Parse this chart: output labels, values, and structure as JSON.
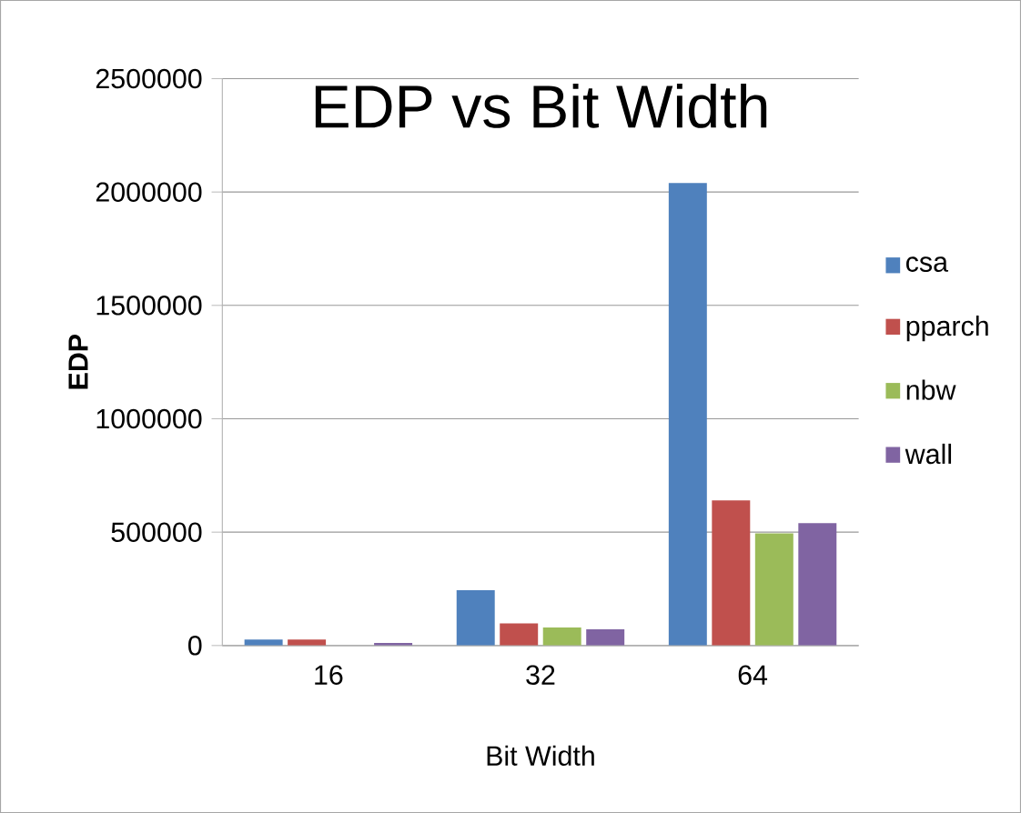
{
  "chart_data": {
    "type": "bar",
    "title": "EDP vs Bit Width",
    "xlabel": "Bit Width",
    "ylabel": "EDP",
    "categories": [
      "16",
      "32",
      "64"
    ],
    "series": [
      {
        "name": "csa",
        "color": "#4f81bd",
        "values": [
          26000,
          244000,
          2040000
        ]
      },
      {
        "name": "pparch",
        "color": "#c0504d",
        "values": [
          26000,
          98000,
          640000
        ]
      },
      {
        "name": "nbw",
        "color": "#9bbb59",
        "values": [
          0,
          80000,
          495000
        ]
      },
      {
        "name": "wall",
        "color": "#8064a2",
        "values": [
          11000,
          72000,
          540000
        ]
      }
    ],
    "ylim": [
      0,
      2500000
    ],
    "yticks": [
      0,
      500000,
      1000000,
      1500000,
      2000000,
      2500000
    ],
    "grid": "y",
    "legend": "right"
  }
}
